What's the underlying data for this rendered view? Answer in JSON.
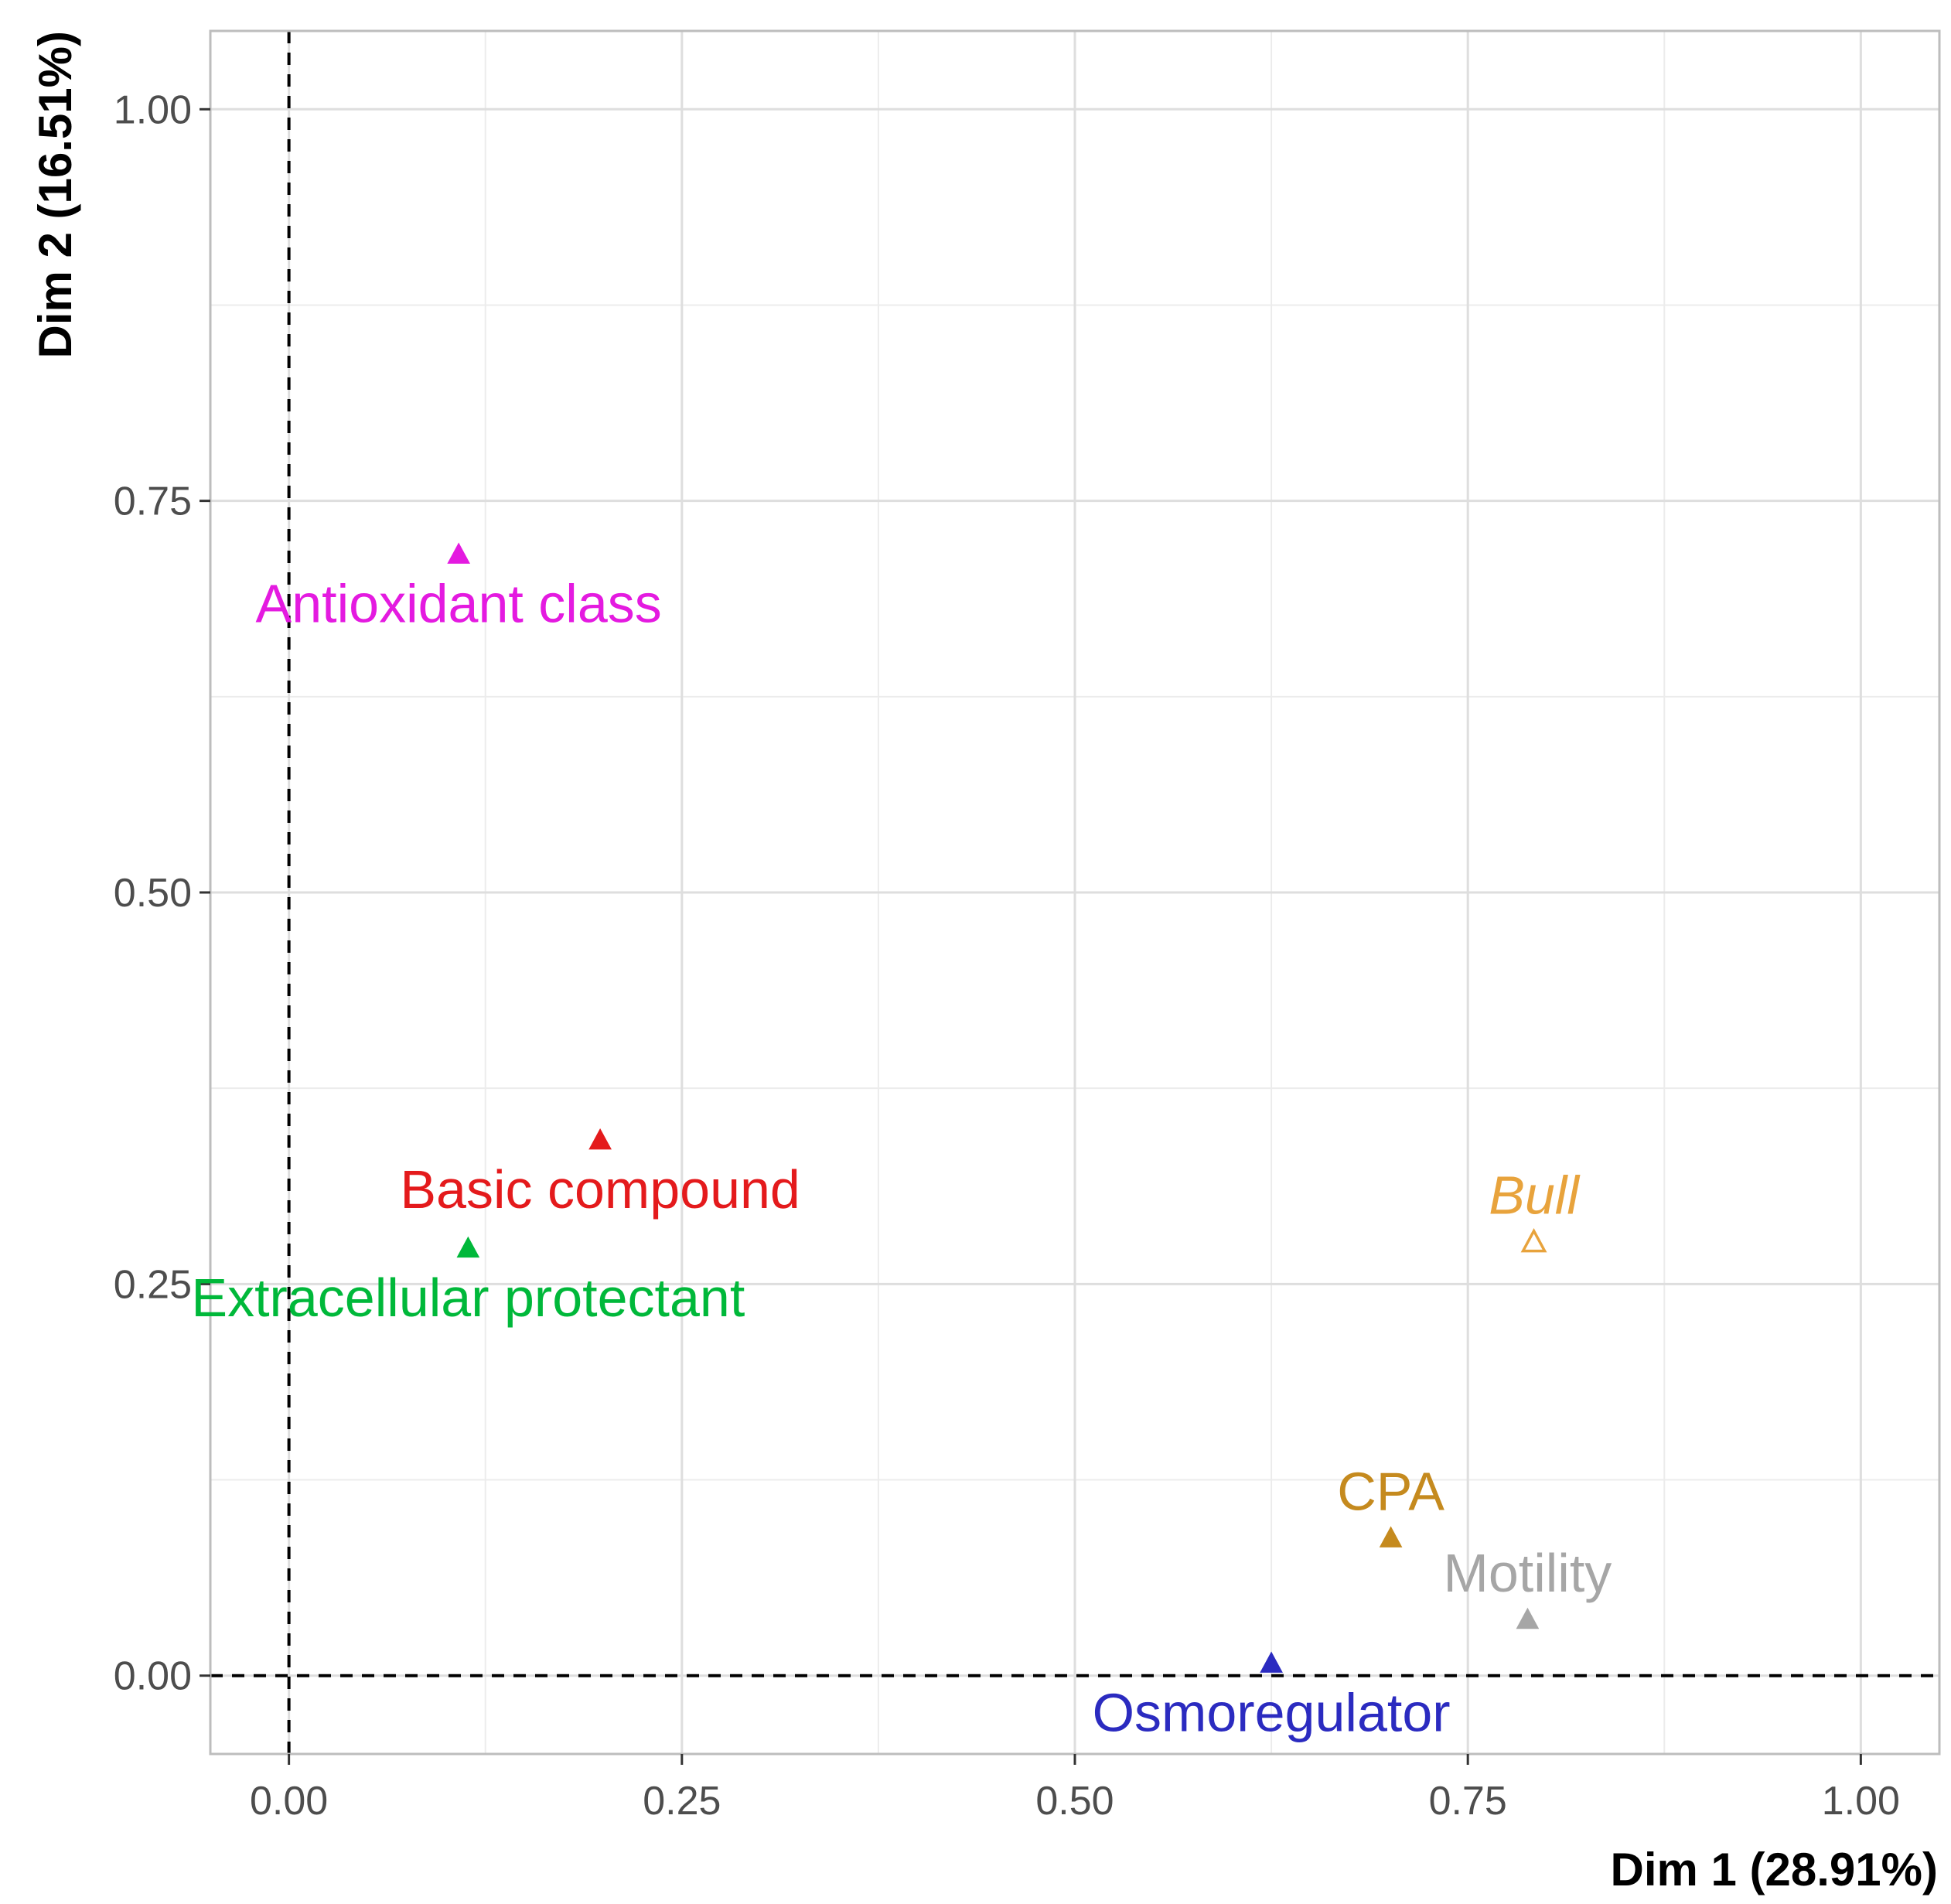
{
  "chart_data": {
    "type": "scatter",
    "title": "",
    "xlabel": "Dim 1 (28.91%)",
    "ylabel": "Dim 2 (16.51%)",
    "xlim": [
      -0.05,
      1.05
    ],
    "ylim": [
      -0.05,
      1.05
    ],
    "x_ticks": [
      0.0,
      0.25,
      0.5,
      0.75,
      1.0
    ],
    "y_ticks": [
      0.0,
      0.25,
      0.5,
      0.75,
      1.0
    ],
    "x_tick_labels": [
      "0.00",
      "0.25",
      "0.50",
      "0.75",
      "1.00"
    ],
    "y_tick_labels": [
      "0.00",
      "0.25",
      "0.50",
      "0.75",
      "1.00"
    ],
    "minor_grid": [
      0.125,
      0.375,
      0.625,
      0.875
    ],
    "reference_lines": {
      "x": 0,
      "y": 0,
      "style": "dashed"
    },
    "grid": true,
    "points": [
      {
        "label": "Antioxidant class",
        "x": 0.108,
        "y": 0.716,
        "color": "#e41ae0",
        "marker": "filled-triangle",
        "italic": false,
        "label_pos": "below"
      },
      {
        "label": "Basic compound",
        "x": 0.198,
        "y": 0.342,
        "color": "#e41a1c",
        "marker": "filled-triangle",
        "italic": false,
        "label_pos": "below"
      },
      {
        "label": "Extracellular protectant",
        "x": 0.114,
        "y": 0.273,
        "color": "#00b83a",
        "marker": "filled-triangle",
        "italic": false,
        "label_pos": "below"
      },
      {
        "label": "Bull",
        "x": 0.792,
        "y": 0.277,
        "color": "#e8a33c",
        "marker": "open-triangle",
        "italic": true,
        "label_pos": "above"
      },
      {
        "label": "CPA",
        "x": 0.701,
        "y": 0.088,
        "color": "#c58a1e",
        "marker": "filled-triangle",
        "italic": false,
        "label_pos": "above"
      },
      {
        "label": "Motility",
        "x": 0.788,
        "y": 0.036,
        "color": "#a6a6a6",
        "marker": "filled-triangle",
        "italic": false,
        "label_pos": "above"
      },
      {
        "label": "Osmoregulator",
        "x": 0.625,
        "y": 0.008,
        "color": "#2b2bc0",
        "marker": "filled-triangle",
        "italic": false,
        "label_pos": "below"
      }
    ]
  }
}
